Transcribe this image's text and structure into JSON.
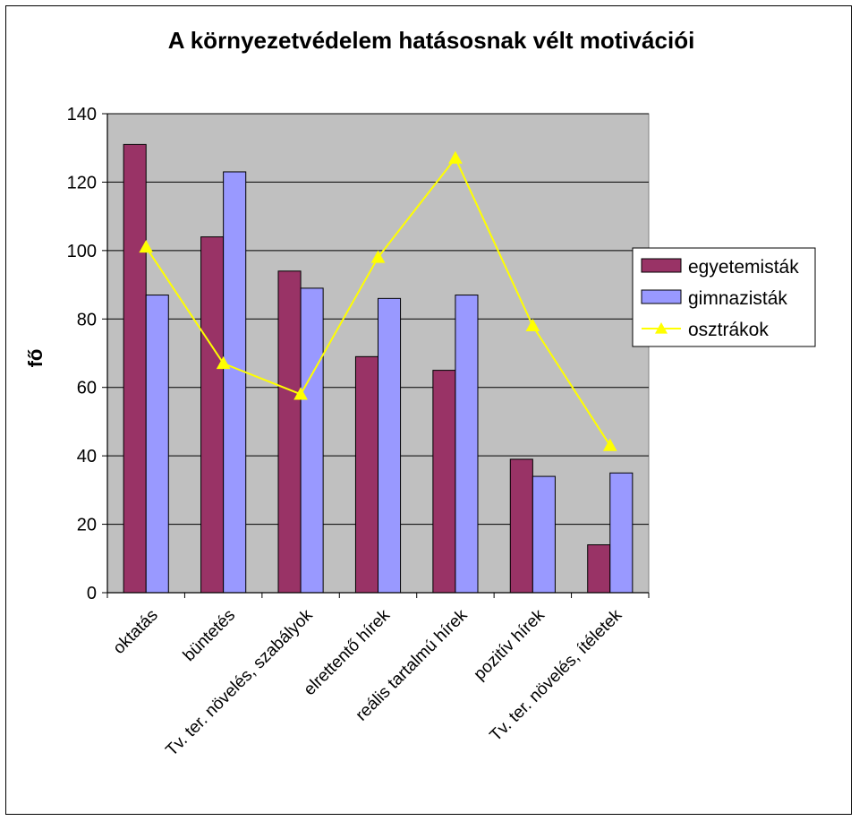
{
  "chart_data": {
    "type": "bar",
    "title": "A környezetvédelem hatásosnak vélt motivációi",
    "ylabel": "fő",
    "xlabel": "",
    "ylim": [
      0,
      140
    ],
    "yticks": [
      0,
      20,
      40,
      60,
      80,
      100,
      120,
      140
    ],
    "grid": true,
    "legend_position": "right",
    "categories": [
      "oktatás",
      "büntetés",
      "Tv. ter. növelés, szabályok",
      "elrettentő hírek",
      "reális tartalmú hírek",
      "pozitív hírek",
      "Tv. ter. növelés, ítéletek"
    ],
    "series": [
      {
        "name": "egyetemisták",
        "type": "bar",
        "color": "#993366",
        "values": [
          131,
          104,
          94,
          69,
          65,
          39,
          14
        ]
      },
      {
        "name": "gimnazisták",
        "type": "bar",
        "color": "#9999ff",
        "values": [
          87,
          123,
          89,
          86,
          87,
          34,
          35
        ]
      },
      {
        "name": "osztrákok",
        "type": "line",
        "color": "#ffff00",
        "marker": "triangle",
        "values": [
          101,
          67,
          58,
          98,
          127,
          78,
          43
        ]
      }
    ],
    "plot_background": "#c0c0c0"
  }
}
